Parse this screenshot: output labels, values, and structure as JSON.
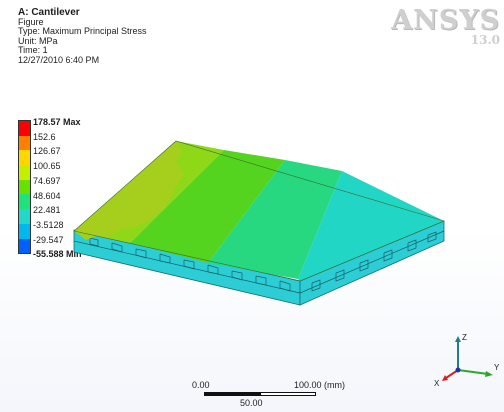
{
  "info": {
    "title": "A: Cantilever",
    "figure": "Figure",
    "type": "Type: Maximum Principal Stress",
    "unit": "Unit: MPa",
    "time": "Time: 1",
    "timestamp": "12/27/2010 6:40 PM"
  },
  "logo": {
    "brand": "ANSYS",
    "version": "13.0"
  },
  "legend": {
    "labels": [
      "178.57 Max",
      "152.6",
      "126.67",
      "100.65",
      "74.697",
      "48.604",
      "22.481",
      "-3.5128",
      "-29.547",
      "-55.588 Min"
    ],
    "colors": [
      "#ff0000",
      "#ff7f00",
      "#ffd700",
      "#c4ef00",
      "#68e000",
      "#1ee27a",
      "#23d8c9",
      "#00b8f0",
      "#0060ff",
      "#0000ff"
    ]
  },
  "scale": {
    "start": "0.00",
    "end": "100.00 (mm)",
    "mid": "50.00"
  },
  "triad": {
    "z": "Z",
    "y": "Y",
    "x": "X"
  },
  "plate_colors": {
    "band1": "#8ed818",
    "band2": "#55d41f",
    "band3": "#27d880",
    "band4": "#22d6c6",
    "side": "#2ccdd5",
    "left_strip": "#a6cf1d"
  }
}
